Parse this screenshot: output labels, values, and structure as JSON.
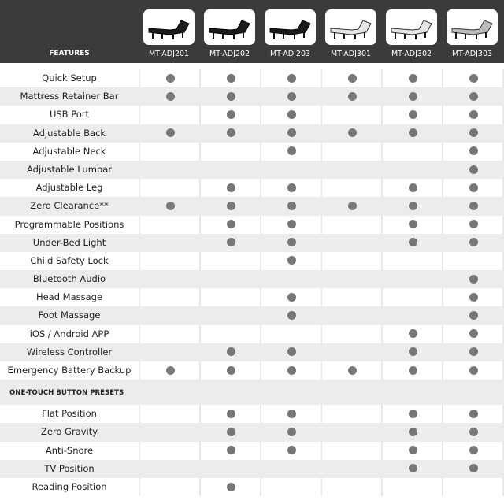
{
  "header": {
    "features_label": "FEATURES",
    "models": [
      {
        "name": "MT-ADJ201",
        "bed_color": "black"
      },
      {
        "name": "MT-ADJ202",
        "bed_color": "black"
      },
      {
        "name": "MT-ADJ203",
        "bed_color": "black"
      },
      {
        "name": "MT-ADJ301",
        "bed_color": "white"
      },
      {
        "name": "MT-ADJ302",
        "bed_color": "white"
      },
      {
        "name": "MT-ADJ303",
        "bed_color": "gray"
      }
    ]
  },
  "colors": {
    "header_bg": "#3b3b3b",
    "dot": "#777777",
    "row_alt": "#ececec"
  },
  "features": [
    {
      "label": "Quick Setup",
      "has": [
        1,
        1,
        1,
        1,
        1,
        1
      ]
    },
    {
      "label": "Mattress Retainer Bar",
      "has": [
        1,
        1,
        1,
        1,
        1,
        1
      ]
    },
    {
      "label": "USB Port",
      "has": [
        0,
        1,
        1,
        0,
        1,
        1
      ]
    },
    {
      "label": "Adjustable Back",
      "has": [
        1,
        1,
        1,
        1,
        1,
        1
      ]
    },
    {
      "label": "Adjustable Neck",
      "has": [
        0,
        0,
        1,
        0,
        0,
        1
      ]
    },
    {
      "label": "Adjustable Lumbar",
      "has": [
        0,
        0,
        0,
        0,
        0,
        1
      ]
    },
    {
      "label": "Adjustable Leg",
      "has": [
        0,
        1,
        1,
        0,
        1,
        1
      ]
    },
    {
      "label": "Zero Clearance**",
      "has": [
        1,
        1,
        1,
        1,
        1,
        1
      ]
    },
    {
      "label": "Programmable Positions",
      "has": [
        0,
        1,
        1,
        0,
        1,
        1
      ]
    },
    {
      "label": "Under-Bed Light",
      "has": [
        0,
        1,
        1,
        0,
        1,
        1
      ]
    },
    {
      "label": "Child Safety Lock",
      "has": [
        0,
        0,
        1,
        0,
        0,
        0
      ]
    },
    {
      "label": "Bluetooth Audio",
      "has": [
        0,
        0,
        0,
        0,
        0,
        1
      ]
    },
    {
      "label": "Head Massage",
      "has": [
        0,
        0,
        1,
        0,
        0,
        1
      ]
    },
    {
      "label": "Foot Massage",
      "has": [
        0,
        0,
        1,
        0,
        0,
        1
      ]
    },
    {
      "label": "iOS / Android APP",
      "has": [
        0,
        0,
        0,
        0,
        1,
        1
      ]
    },
    {
      "label": "Wireless Controller",
      "has": [
        0,
        1,
        1,
        0,
        1,
        1
      ]
    },
    {
      "label": "Emergency Battery Backup",
      "has": [
        1,
        1,
        1,
        1,
        1,
        1
      ]
    }
  ],
  "presets_section": {
    "title": "ONE-TOUCH BUTTON PRESETS",
    "rows": [
      {
        "label": "Flat Position",
        "has": [
          0,
          1,
          1,
          0,
          1,
          1
        ]
      },
      {
        "label": "Zero Gravity",
        "has": [
          0,
          1,
          1,
          0,
          1,
          1
        ]
      },
      {
        "label": "Anti-Snore",
        "has": [
          0,
          1,
          1,
          0,
          1,
          1
        ]
      },
      {
        "label": "TV Position",
        "has": [
          0,
          0,
          0,
          0,
          1,
          1
        ]
      },
      {
        "label": "Reading Position",
        "has": [
          0,
          1,
          0,
          0,
          0,
          0
        ]
      }
    ]
  }
}
